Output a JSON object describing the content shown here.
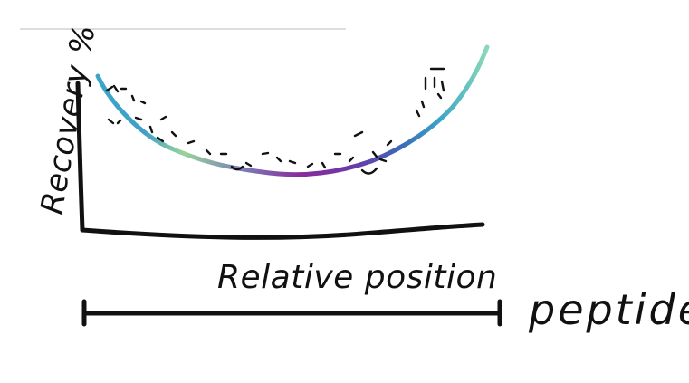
{
  "diagram": {
    "y_axis_label": "Recovery %",
    "x_axis_label": "Relative position",
    "scale_bar_label": "peptide",
    "curve_gradient": [
      "#8ad8b8",
      "#3fa0c8",
      "#9ad39a",
      "#8a4aa8",
      "#8a2a9a",
      "#5a4aa8",
      "#3a8ac8",
      "#8ad8b8"
    ],
    "ink_color": "#111111",
    "divider_color": "#bbbbbb"
  }
}
